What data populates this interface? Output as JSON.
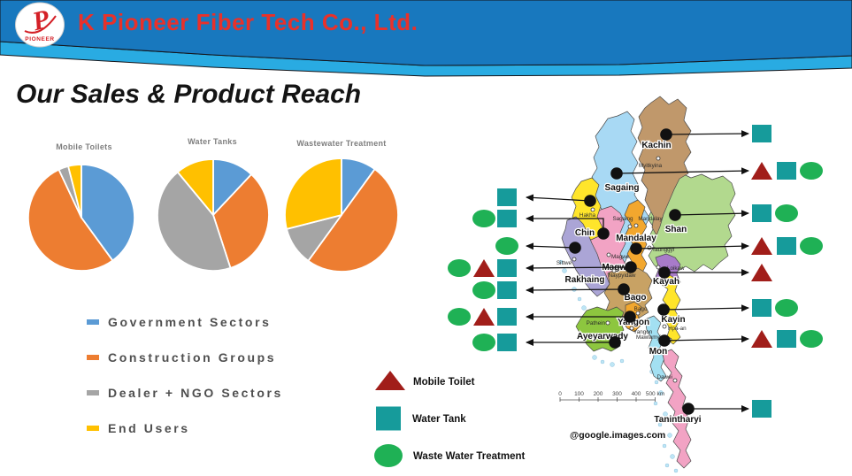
{
  "header": {
    "company": "K Pioneer Fiber Tech Co., Ltd.",
    "logo_letter": "P",
    "logo_text": "PIONEER",
    "colors": {
      "band": "#1878BE",
      "stripe": "#29ABE2",
      "title": "#E8312A",
      "logo_red": "#D42027"
    }
  },
  "page_title": "Our Sales & Product Reach",
  "chart_data": [
    {
      "type": "pie",
      "title": "Mobile Toilets",
      "labels": [
        "Government Sectors",
        "Construction Groups",
        "Dealer + NGO Sectors",
        "End Users"
      ],
      "values": [
        40,
        53,
        3,
        4
      ],
      "colors": [
        "#5B9BD5",
        "#ED7D31",
        "#A5A5A5",
        "#FFC000"
      ],
      "legend_position": "shared-left"
    },
    {
      "type": "pie",
      "title": "Water Tanks",
      "labels": [
        "Government Sectors",
        "Construction Groups",
        "Dealer + NGO Sectors",
        "End Users"
      ],
      "values": [
        12,
        33,
        44,
        11
      ],
      "colors": [
        "#5B9BD5",
        "#ED7D31",
        "#A5A5A5",
        "#FFC000"
      ],
      "legend_position": "shared-left"
    },
    {
      "type": "pie",
      "title": "Wastewater Treatment",
      "labels": [
        "Government Sectors",
        "Construction Groups",
        "Dealer + NGO Sectors",
        "End Users"
      ],
      "values": [
        10,
        50,
        11,
        29
      ],
      "colors": [
        "#5B9BD5",
        "#ED7D31",
        "#A5A5A5",
        "#FFC000"
      ],
      "legend_position": "shared-left"
    }
  ],
  "pie_legend": {
    "items": [
      {
        "label": "Government Sectors",
        "color": "#5B9BD5"
      },
      {
        "label": "Construction Groups",
        "color": "#ED7D31"
      },
      {
        "label": "Dealer + NGO Sectors",
        "color": "#A5A5A5"
      },
      {
        "label": "End Users",
        "color": "#FFC000"
      }
    ]
  },
  "map": {
    "credit": "@google.images.com",
    "scale_ticks": [
      "0",
      "100",
      "200",
      "300",
      "400",
      "500 km"
    ],
    "legend": [
      {
        "id": "mobile_toilet",
        "label": "Mobile Toilet",
        "shape": "triangle",
        "color": "#A11E1A"
      },
      {
        "id": "water_tank",
        "label": "Water Tank",
        "shape": "square",
        "color": "#169B9B"
      },
      {
        "id": "waste_water",
        "label": "Waste Water Treatment",
        "shape": "ellipse",
        "color": "#1FB155"
      }
    ],
    "regions": [
      {
        "id": "shan",
        "name": "Shan",
        "color": "#B2D98E"
      },
      {
        "id": "kachin",
        "name": "Kachin",
        "color": "#C0986B"
      },
      {
        "id": "sagaing",
        "name": "Sagaing",
        "color": "#A8D9F4"
      },
      {
        "id": "mandalay",
        "name": "Mandalay",
        "color": "#F2A72E"
      },
      {
        "id": "magwe",
        "name": "Magwe",
        "color": "#F2A3C4"
      },
      {
        "id": "chin",
        "name": "Chin",
        "color": "#FFE52B"
      },
      {
        "id": "rakhaing",
        "name": "Rakhaing",
        "color": "#ABA5D6"
      },
      {
        "id": "kayah",
        "name": "Kayah",
        "color": "#A87BC9"
      },
      {
        "id": "bago",
        "name": "Bago",
        "color": "#C8A264"
      },
      {
        "id": "kayin",
        "name": "Kayin",
        "color": "#FFE52B"
      },
      {
        "id": "mon",
        "name": "Mon",
        "color": "#A3E0F2"
      },
      {
        "id": "yangon",
        "name": "Yangon",
        "color": "#F2A72E"
      },
      {
        "id": "ayeyarwady",
        "name": "Ayeyarwady",
        "color": "#8DC63F"
      },
      {
        "id": "tanintharyi",
        "name": "Tanintharyi",
        "color": "#F2A3C4"
      }
    ],
    "cities": [
      {
        "id": "myitkyina",
        "name": "Myitkyina"
      },
      {
        "id": "hakha",
        "name": "Hakha"
      },
      {
        "id": "sagaing_city",
        "name": "Sagaing"
      },
      {
        "id": "mandalay_city",
        "name": "Mandalay"
      },
      {
        "id": "taunggyi",
        "name": "Taunggyi"
      },
      {
        "id": "sittwe",
        "name": "Sittwe"
      },
      {
        "id": "magwe_city",
        "name": "Magwe"
      },
      {
        "id": "naypyidaw",
        "name": "Naypyidaw"
      },
      {
        "id": "loikaw",
        "name": "Loikaw"
      },
      {
        "id": "bago_city",
        "name": "Bago"
      },
      {
        "id": "pathein",
        "name": "Pathein"
      },
      {
        "id": "yangon_city",
        "name": "Yangon"
      },
      {
        "id": "hpa_an",
        "name": "Hpa-an"
      },
      {
        "id": "mawlamyine",
        "name": "Mawlamyine"
      },
      {
        "id": "dawei",
        "name": "Dawei"
      }
    ],
    "markers": [
      {
        "id": "kachin",
        "side": "right",
        "icons": [
          "water_tank"
        ]
      },
      {
        "id": "sagaing",
        "side": "right",
        "icons": [
          "mobile_toilet",
          "water_tank",
          "waste_water"
        ]
      },
      {
        "id": "shan",
        "side": "right",
        "icons": [
          "water_tank",
          "waste_water"
        ]
      },
      {
        "id": "mandalay",
        "side": "right",
        "icons": [
          "mobile_toilet",
          "water_tank",
          "waste_water"
        ]
      },
      {
        "id": "kayah",
        "side": "right",
        "icons": [
          "mobile_toilet"
        ]
      },
      {
        "id": "kayin",
        "side": "right",
        "icons": [
          "water_tank",
          "waste_water"
        ]
      },
      {
        "id": "mon",
        "side": "right",
        "icons": [
          "mobile_toilet",
          "water_tank",
          "waste_water"
        ]
      },
      {
        "id": "tanintharyi",
        "side": "right",
        "icons": [
          "water_tank"
        ]
      },
      {
        "id": "chin",
        "side": "left",
        "icons": [
          "water_tank"
        ]
      },
      {
        "id": "magwe_n",
        "side": "left",
        "icons": [
          "water_tank",
          "waste_water"
        ]
      },
      {
        "id": "rakhaing",
        "side": "left",
        "icons": [
          "waste_water"
        ]
      },
      {
        "id": "naypyidaw",
        "side": "left",
        "icons": [
          "water_tank",
          "mobile_toilet",
          "waste_water"
        ]
      },
      {
        "id": "bago",
        "side": "left",
        "icons": [
          "water_tank",
          "waste_water"
        ]
      },
      {
        "id": "yangon",
        "side": "left",
        "icons": [
          "water_tank",
          "mobile_toilet",
          "waste_water"
        ]
      },
      {
        "id": "ayeyarwady",
        "side": "left",
        "icons": [
          "water_tank",
          "waste_water"
        ]
      }
    ]
  }
}
